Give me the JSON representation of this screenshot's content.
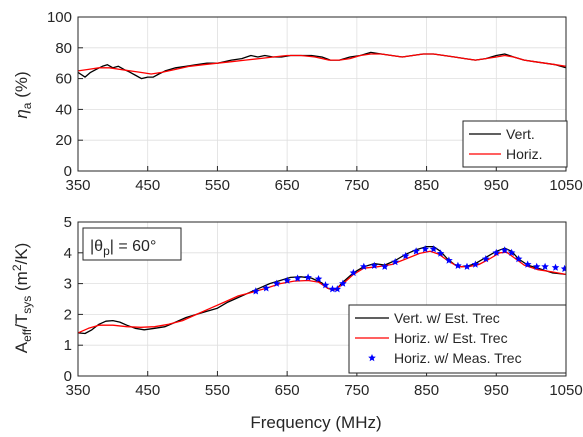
{
  "chart_data": [
    {
      "type": "line",
      "x_range": [
        350,
        1050
      ],
      "x_ticks": [
        350,
        450,
        550,
        650,
        750,
        850,
        950,
        1050
      ],
      "y_range": [
        0,
        100
      ],
      "y_ticks": [
        0,
        20,
        40,
        60,
        80,
        100
      ],
      "ylabel_main": "η",
      "ylabel_sub": "a",
      "ylabel_tail": " (%)",
      "grid": true,
      "legend_position": "bottom-right",
      "series": [
        {
          "name": "Vert.",
          "color": "#000000",
          "marker": "none",
          "points": [
            [
              350,
              64
            ],
            [
              360,
              61
            ],
            [
              368,
              64
            ],
            [
              376,
              66
            ],
            [
              385,
              68
            ],
            [
              392,
              69
            ],
            [
              400,
              67
            ],
            [
              408,
              68
            ],
            [
              416,
              66
            ],
            [
              425,
              64
            ],
            [
              433,
              62
            ],
            [
              441,
              60
            ],
            [
              450,
              61
            ],
            [
              458,
              61
            ],
            [
              466,
              63
            ],
            [
              475,
              65
            ],
            [
              490,
              67
            ],
            [
              505,
              68
            ],
            [
              520,
              69
            ],
            [
              535,
              70
            ],
            [
              550,
              70
            ],
            [
              570,
              72
            ],
            [
              585,
              73
            ],
            [
              598,
              75
            ],
            [
              608,
              74
            ],
            [
              618,
              75
            ],
            [
              630,
              74
            ],
            [
              642,
              74
            ],
            [
              655,
              75
            ],
            [
              670,
              75
            ],
            [
              685,
              75
            ],
            [
              700,
              74
            ],
            [
              712,
              72
            ],
            [
              725,
              72
            ],
            [
              740,
              74
            ],
            [
              755,
              75
            ],
            [
              770,
              77
            ],
            [
              785,
              76
            ],
            [
              800,
              75
            ],
            [
              815,
              74
            ],
            [
              830,
              75
            ],
            [
              845,
              76
            ],
            [
              860,
              76
            ],
            [
              875,
              75
            ],
            [
              890,
              74
            ],
            [
              905,
              73
            ],
            [
              920,
              72
            ],
            [
              935,
              73
            ],
            [
              950,
              75
            ],
            [
              962,
              76
            ],
            [
              975,
              74
            ],
            [
              990,
              72
            ],
            [
              1005,
              71
            ],
            [
              1020,
              70
            ],
            [
              1035,
              69
            ],
            [
              1050,
              67
            ]
          ]
        },
        {
          "name": "Horiz.",
          "color": "#ff0000",
          "marker": "none",
          "points": [
            [
              350,
              65
            ],
            [
              365,
              66
            ],
            [
              380,
              67
            ],
            [
              395,
              67
            ],
            [
              410,
              66
            ],
            [
              425,
              65
            ],
            [
              440,
              64
            ],
            [
              455,
              63
            ],
            [
              470,
              64
            ],
            [
              490,
              66
            ],
            [
              510,
              68
            ],
            [
              530,
              69
            ],
            [
              550,
              70
            ],
            [
              570,
              71
            ],
            [
              590,
              72
            ],
            [
              610,
              73
            ],
            [
              630,
              74
            ],
            [
              650,
              75
            ],
            [
              670,
              75
            ],
            [
              690,
              74
            ],
            [
              710,
              72
            ],
            [
              725,
              72
            ],
            [
              740,
              73
            ],
            [
              755,
              75
            ],
            [
              770,
              76
            ],
            [
              785,
              76
            ],
            [
              800,
              75
            ],
            [
              815,
              74
            ],
            [
              830,
              75
            ],
            [
              845,
              76
            ],
            [
              860,
              76
            ],
            [
              875,
              75
            ],
            [
              890,
              74
            ],
            [
              905,
              73
            ],
            [
              920,
              72
            ],
            [
              935,
              73
            ],
            [
              950,
              74
            ],
            [
              962,
              75
            ],
            [
              975,
              74
            ],
            [
              990,
              72
            ],
            [
              1005,
              71
            ],
            [
              1020,
              70
            ],
            [
              1035,
              69
            ],
            [
              1050,
              68
            ]
          ]
        }
      ]
    },
    {
      "type": "line",
      "x_range": [
        350,
        1050
      ],
      "x_ticks": [
        350,
        450,
        550,
        650,
        750,
        850,
        950,
        1050
      ],
      "y_range": [
        0,
        5
      ],
      "y_ticks": [
        0,
        1,
        2,
        3,
        4,
        5
      ],
      "xlabel": "Frequency (MHz)",
      "ylabel_main": "A",
      "ylabel_sub1": "eff",
      "ylabel_mid": "/T",
      "ylabel_sub2": "sys",
      "ylabel_tail": "  (m",
      "ylabel_sup": "2",
      "ylabel_end": "/K)",
      "annotation": {
        "prefix": "|θ",
        "sub": "p",
        "suffix": "| = 60°"
      },
      "grid": true,
      "legend_position": "bottom-right",
      "series": [
        {
          "name": "Vert. w/ Est. Trec",
          "color": "#000000",
          "marker": "none",
          "points": [
            [
              350,
              1.4
            ],
            [
              360,
              1.38
            ],
            [
              370,
              1.5
            ],
            [
              380,
              1.68
            ],
            [
              390,
              1.78
            ],
            [
              400,
              1.8
            ],
            [
              410,
              1.75
            ],
            [
              420,
              1.65
            ],
            [
              432,
              1.55
            ],
            [
              445,
              1.5
            ],
            [
              460,
              1.55
            ],
            [
              475,
              1.6
            ],
            [
              490,
              1.75
            ],
            [
              505,
              1.9
            ],
            [
              520,
              2.0
            ],
            [
              535,
              2.1
            ],
            [
              550,
              2.2
            ],
            [
              565,
              2.4
            ],
            [
              580,
              2.55
            ],
            [
              595,
              2.7
            ],
            [
              610,
              2.85
            ],
            [
              625,
              3.0
            ],
            [
              640,
              3.1
            ],
            [
              655,
              3.2
            ],
            [
              670,
              3.22
            ],
            [
              685,
              3.18
            ],
            [
              700,
              3.02
            ],
            [
              708,
              2.85
            ],
            [
              715,
              2.8
            ],
            [
              722,
              2.85
            ],
            [
              730,
              3.05
            ],
            [
              745,
              3.35
            ],
            [
              760,
              3.55
            ],
            [
              775,
              3.65
            ],
            [
              790,
              3.6
            ],
            [
              805,
              3.75
            ],
            [
              820,
              3.95
            ],
            [
              835,
              4.1
            ],
            [
              850,
              4.2
            ],
            [
              860,
              4.2
            ],
            [
              870,
              4.05
            ],
            [
              880,
              3.8
            ],
            [
              890,
              3.62
            ],
            [
              900,
              3.55
            ],
            [
              910,
              3.58
            ],
            [
              920,
              3.65
            ],
            [
              935,
              3.85
            ],
            [
              950,
              4.05
            ],
            [
              962,
              4.15
            ],
            [
              972,
              4.05
            ],
            [
              982,
              3.8
            ],
            [
              995,
              3.6
            ],
            [
              1010,
              3.5
            ],
            [
              1030,
              3.35
            ],
            [
              1050,
              3.3
            ]
          ]
        },
        {
          "name": "Horiz. w/ Est. Trec",
          "color": "#ff0000",
          "marker": "none",
          "points": [
            [
              350,
              1.4
            ],
            [
              365,
              1.55
            ],
            [
              380,
              1.65
            ],
            [
              400,
              1.65
            ],
            [
              420,
              1.6
            ],
            [
              440,
              1.58
            ],
            [
              460,
              1.6
            ],
            [
              480,
              1.68
            ],
            [
              500,
              1.8
            ],
            [
              520,
              2.0
            ],
            [
              540,
              2.2
            ],
            [
              560,
              2.4
            ],
            [
              580,
              2.6
            ],
            [
              600,
              2.72
            ],
            [
              620,
              2.85
            ],
            [
              640,
              3.0
            ],
            [
              660,
              3.08
            ],
            [
              680,
              3.1
            ],
            [
              695,
              3.05
            ],
            [
              708,
              2.85
            ],
            [
              718,
              2.8
            ],
            [
              728,
              2.95
            ],
            [
              745,
              3.3
            ],
            [
              760,
              3.5
            ],
            [
              780,
              3.55
            ],
            [
              800,
              3.62
            ],
            [
              820,
              3.8
            ],
            [
              840,
              3.98
            ],
            [
              855,
              4.05
            ],
            [
              868,
              3.95
            ],
            [
              880,
              3.75
            ],
            [
              895,
              3.55
            ],
            [
              910,
              3.55
            ],
            [
              925,
              3.62
            ],
            [
              940,
              3.8
            ],
            [
              955,
              4.0
            ],
            [
              965,
              4.02
            ],
            [
              975,
              3.85
            ],
            [
              990,
              3.6
            ],
            [
              1010,
              3.45
            ],
            [
              1030,
              3.38
            ],
            [
              1050,
              3.3
            ]
          ]
        },
        {
          "name": "Horiz. w/ Meas. Trec",
          "color": "#0000ff",
          "marker": "star",
          "points": [
            [
              605,
              2.75
            ],
            [
              620,
              2.85
            ],
            [
              635,
              3.0
            ],
            [
              650,
              3.1
            ],
            [
              665,
              3.17
            ],
            [
              680,
              3.2
            ],
            [
              695,
              3.15
            ],
            [
              705,
              2.95
            ],
            [
              715,
              2.82
            ],
            [
              722,
              2.82
            ],
            [
              730,
              3.0
            ],
            [
              745,
              3.35
            ],
            [
              760,
              3.55
            ],
            [
              775,
              3.58
            ],
            [
              790,
              3.55
            ],
            [
              805,
              3.7
            ],
            [
              820,
              3.9
            ],
            [
              835,
              4.05
            ],
            [
              848,
              4.12
            ],
            [
              860,
              4.12
            ],
            [
              870,
              3.98
            ],
            [
              882,
              3.75
            ],
            [
              895,
              3.58
            ],
            [
              908,
              3.55
            ],
            [
              920,
              3.62
            ],
            [
              935,
              3.8
            ],
            [
              950,
              4.0
            ],
            [
              962,
              4.08
            ],
            [
              972,
              4.0
            ],
            [
              982,
              3.8
            ],
            [
              995,
              3.62
            ],
            [
              1008,
              3.55
            ],
            [
              1020,
              3.55
            ],
            [
              1035,
              3.52
            ],
            [
              1048,
              3.48
            ]
          ]
        }
      ]
    }
  ]
}
